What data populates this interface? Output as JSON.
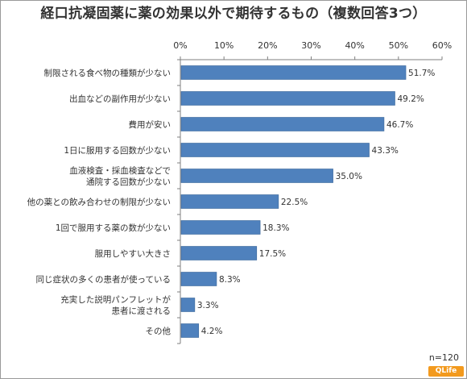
{
  "title": "経口抗凝固薬に薬の効果以外で期待するもの（複数回答3つ）",
  "note": "n=120",
  "logo_text": "QLife",
  "chart_data": {
    "type": "bar",
    "orientation": "horizontal",
    "categories": [
      [
        "制限される食べ物の種類が少ない"
      ],
      [
        "出血などの副作用が少ない"
      ],
      [
        "費用が安い"
      ],
      [
        "1日に服用する回数が少ない"
      ],
      [
        "血液検査・採血検査などで",
        "通院する回数が少ない"
      ],
      [
        "他の薬との飲み合わせの制限が少ない"
      ],
      [
        "1回で服用する薬の数が少ない"
      ],
      [
        "服用しやすい大きさ"
      ],
      [
        "同じ症状の多くの患者が使っている"
      ],
      [
        "充実した説明パンフレットが",
        "患者に渡される"
      ],
      [
        "その他"
      ]
    ],
    "values": [
      51.7,
      49.2,
      46.7,
      43.3,
      35.0,
      22.5,
      18.3,
      17.5,
      8.3,
      3.3,
      4.2
    ],
    "value_labels": [
      "51.7%",
      "49.2%",
      "46.7%",
      "43.3%",
      "35.0%",
      "22.5%",
      "18.3%",
      "17.5%",
      "8.3%",
      "3.3%",
      "4.2%"
    ],
    "xlim": [
      0,
      60
    ],
    "ticks": [
      0,
      10,
      20,
      30,
      40,
      50,
      60
    ],
    "tick_labels": [
      "0%",
      "10%",
      "20%",
      "30%",
      "40%",
      "50%",
      "60%"
    ],
    "axis_position": "top",
    "grid": false,
    "bar_color": "#4f81bd"
  }
}
